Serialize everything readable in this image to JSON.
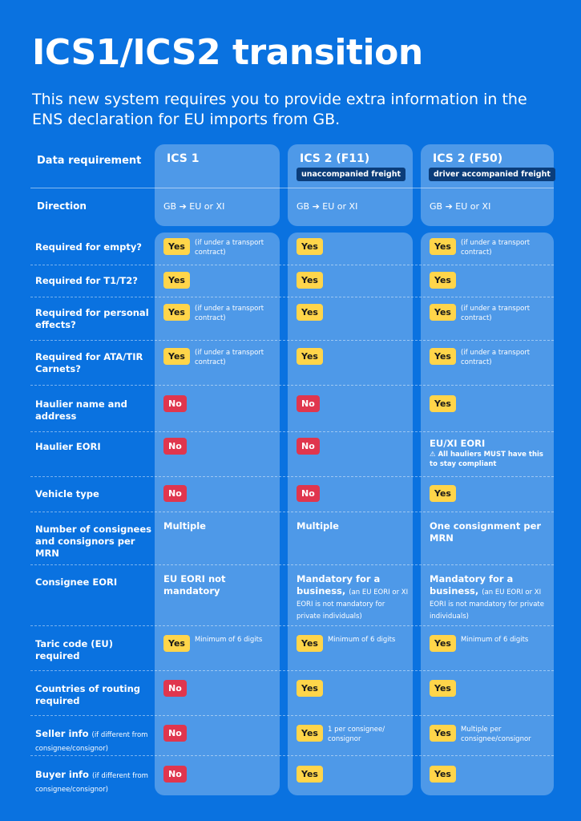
{
  "title": "ICS1/ICS2 transition",
  "subtitle": "This new system requires you to provide extra information in the ENS declaration for EU imports from GB.",
  "header": {
    "label": "Data requirement",
    "columns": [
      {
        "title": "ICS 1",
        "badge": ""
      },
      {
        "title": "ICS 2 (F11)",
        "badge": "unaccompanied freight"
      },
      {
        "title": "ICS 2 (F50)",
        "badge": "driver accompanied freight"
      }
    ]
  },
  "direction": {
    "label": "Direction",
    "values": [
      "GB ➔ EU or XI",
      "GB ➔ EU or XI",
      "GB ➔ EU or XI"
    ]
  },
  "colors": {
    "yes": "#ffd54a",
    "no": "#e0364e",
    "background": "#0a72e0",
    "column_badge": "#0b3d7a"
  },
  "rows": [
    {
      "label": "Required for empty?",
      "note": "",
      "cells": [
        {
          "badge": "Yes",
          "note": "(if under a transport contract)"
        },
        {
          "badge": "Yes",
          "note": ""
        },
        {
          "badge": "Yes",
          "note": "(if under a transport contract)"
        }
      ]
    },
    {
      "label": "Required for T1/T2?",
      "note": "",
      "cells": [
        {
          "badge": "Yes",
          "note": ""
        },
        {
          "badge": "Yes",
          "note": ""
        },
        {
          "badge": "Yes",
          "note": ""
        }
      ]
    },
    {
      "label": "Required for personal effects?",
      "note": "",
      "cells": [
        {
          "badge": "Yes",
          "note": "(if under a transport contract)"
        },
        {
          "badge": "Yes",
          "note": ""
        },
        {
          "badge": "Yes",
          "note": "(if under a transport contract)"
        }
      ]
    },
    {
      "label": "Required for ATA/TIR Carnets?",
      "note": "",
      "cells": [
        {
          "badge": "Yes",
          "note": "(if under a transport contract)"
        },
        {
          "badge": "Yes",
          "note": ""
        },
        {
          "badge": "Yes",
          "note": "(if under a transport contract)"
        }
      ]
    },
    {
      "label": "Haulier name and address",
      "note": "",
      "cells": [
        {
          "badge": "No",
          "note": ""
        },
        {
          "badge": "No",
          "note": ""
        },
        {
          "badge": "Yes",
          "note": ""
        }
      ]
    },
    {
      "label": "Haulier EORI",
      "note": "",
      "cells": [
        {
          "badge": "No",
          "note": ""
        },
        {
          "badge": "No",
          "note": ""
        },
        {
          "text": "EU/XI EORI",
          "warning": "All hauliers MUST have this to stay compliant"
        }
      ]
    },
    {
      "label": "Vehicle type",
      "note": "",
      "cells": [
        {
          "badge": "No",
          "note": ""
        },
        {
          "badge": "No",
          "note": ""
        },
        {
          "badge": "Yes",
          "note": ""
        }
      ]
    },
    {
      "label": "Number of consignees and consignors per MRN",
      "note": "",
      "cells": [
        {
          "text": "Multiple"
        },
        {
          "text": "Multiple"
        },
        {
          "text": "One consignment per MRN"
        }
      ]
    },
    {
      "label": "Consignee EORI",
      "note": "",
      "cells": [
        {
          "text": "EU EORI not mandatory"
        },
        {
          "text": "Mandatory for a business,",
          "small": "(an EU EORI or XI EORI is not mandatory for private individuals)"
        },
        {
          "text": "Mandatory for a business,",
          "small": "(an EU EORI or XI EORI is not mandatory for private individuals)"
        }
      ]
    },
    {
      "label": "Taric code (EU) required",
      "note": "",
      "cells": [
        {
          "badge": "Yes",
          "note": "Minimum of 6 digits"
        },
        {
          "badge": "Yes",
          "note": "Minimum of 6 digits"
        },
        {
          "badge": "Yes",
          "note": "Minimum of 6 digits"
        }
      ]
    },
    {
      "label": "Countries of routing required",
      "note": "",
      "cells": [
        {
          "badge": "No",
          "note": ""
        },
        {
          "badge": "Yes",
          "note": ""
        },
        {
          "badge": "Yes",
          "note": ""
        }
      ]
    },
    {
      "label": "Seller info",
      "note": "(if different from consignee/consignor)",
      "cells": [
        {
          "badge": "No",
          "note": ""
        },
        {
          "badge": "Yes",
          "note": "1 per consignee/ consignor"
        },
        {
          "badge": "Yes",
          "note": "Multiple per consignee/consignor"
        }
      ]
    },
    {
      "label": "Buyer info",
      "note": "(if different from consignee/consignor)",
      "cells": [
        {
          "badge": "No",
          "note": ""
        },
        {
          "badge": "Yes",
          "note": ""
        },
        {
          "badge": "Yes",
          "note": ""
        }
      ]
    }
  ]
}
